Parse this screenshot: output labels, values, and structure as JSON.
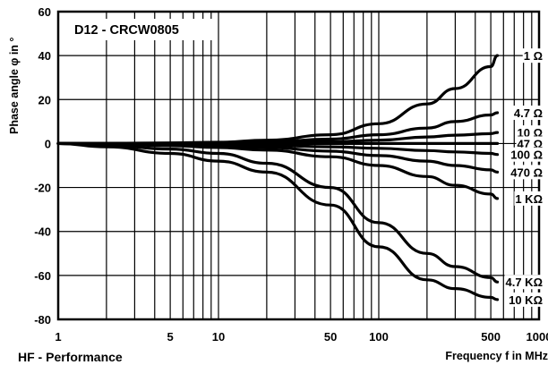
{
  "chart_data": {
    "type": "line",
    "title": "D12 - CRCW0805",
    "xlabel": "Frequency f in MHz",
    "ylabel": "Phase angle φ in °",
    "footer": "HF - Performance",
    "x_scale": "log",
    "xlim": [
      1,
      1000
    ],
    "ylim": [
      -80,
      60
    ],
    "x_ticks": [
      1,
      5,
      10,
      50,
      100,
      500,
      1000
    ],
    "x_tick_labels": [
      "1",
      "5",
      "10",
      "50",
      "100",
      "500",
      "1000"
    ],
    "y_ticks": [
      60,
      40,
      20,
      0,
      -20,
      -40,
      -60,
      -80
    ],
    "y_tick_labels": [
      "60",
      "40",
      "20",
      "0",
      "-20",
      "-40",
      "-60",
      "-80"
    ],
    "grid": true,
    "x": [
      1,
      2,
      5,
      10,
      20,
      50,
      100,
      200,
      300,
      500,
      550
    ],
    "series": [
      {
        "name": "1 Ω",
        "values": [
          0,
          0.1,
          0.3,
          0.6,
          1.5,
          4,
          9,
          18,
          25,
          35,
          40
        ]
      },
      {
        "name": "4.7 Ω",
        "values": [
          0,
          0.05,
          0.15,
          0.3,
          0.7,
          2,
          4,
          7,
          10,
          13,
          14
        ]
      },
      {
        "name": "10 Ω",
        "values": [
          0,
          0.03,
          0.08,
          0.15,
          0.3,
          0.8,
          1.5,
          3,
          3.8,
          4.5,
          5
        ]
      },
      {
        "name": "47 Ω",
        "values": [
          0,
          0,
          0,
          0,
          0,
          0,
          0,
          0,
          0,
          0,
          0
        ]
      },
      {
        "name": "100 Ω",
        "values": [
          0,
          -0.1,
          -0.3,
          -0.5,
          -0.8,
          -1.5,
          -2.2,
          -3.2,
          -3.8,
          -4.5,
          -5
        ]
      },
      {
        "name": "470 Ω",
        "values": [
          0,
          -0.2,
          -0.5,
          -1,
          -1.8,
          -3.5,
          -5.5,
          -8,
          -10,
          -12,
          -13
        ]
      },
      {
        "name": "1 KΩ",
        "values": [
          0,
          -0.3,
          -1,
          -1.8,
          -3,
          -6,
          -10,
          -15,
          -19,
          -23,
          -25
        ]
      },
      {
        "name": "4.7 KΩ",
        "values": [
          0,
          -0.8,
          -2.5,
          -4.5,
          -9,
          -20,
          -36,
          -50,
          -56,
          -61,
          -63
        ]
      },
      {
        "name": "10 KΩ",
        "values": [
          0,
          -1.5,
          -4.5,
          -8,
          -13,
          -28,
          -47,
          -62,
          -66,
          -70,
          -71
        ]
      }
    ]
  }
}
